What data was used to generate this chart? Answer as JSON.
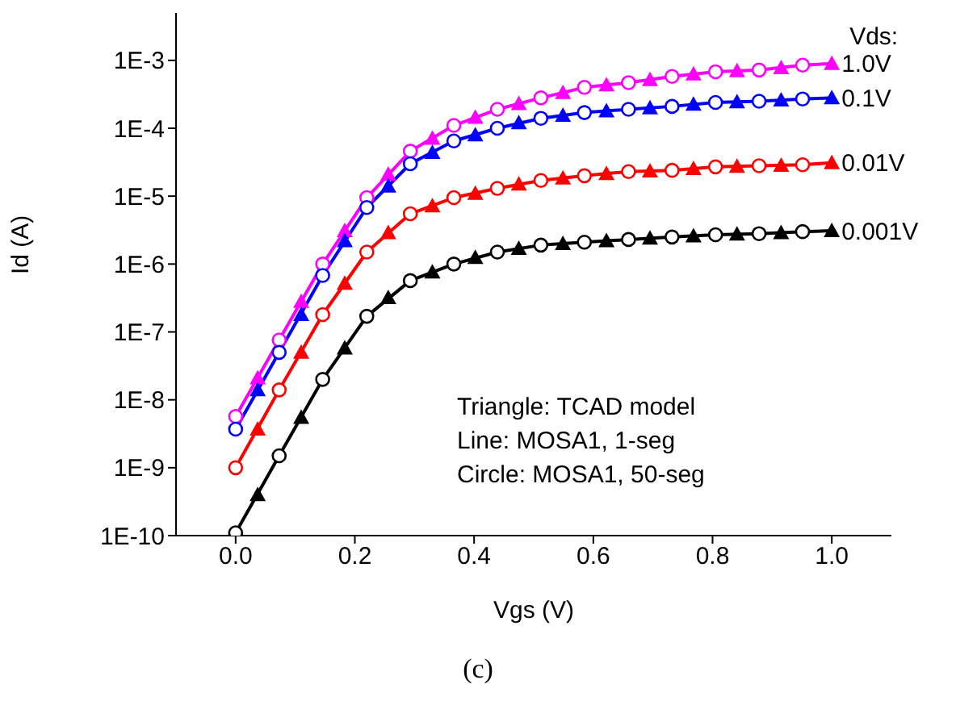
{
  "chart_data": {
    "type": "line",
    "xlabel": "Vgs (V)",
    "ylabel": "Id (A)",
    "legend_title": "Vds:",
    "xlim": [
      -0.1,
      1.1
    ],
    "xticks": [
      {
        "value": 0,
        "label": "0.0"
      },
      0.2,
      0.4,
      0.6,
      0.8,
      {
        "value": 1,
        "label": "1.0"
      }
    ],
    "ylim": [
      1e-10,
      0.005
    ],
    "yticks": [
      {
        "value": 1e-10,
        "label": "1E-10"
      },
      {
        "value": 1e-09,
        "label": "1E-9"
      },
      {
        "value": 1e-08,
        "label": "1E-8"
      },
      {
        "value": 1e-07,
        "label": "1E-7"
      },
      {
        "value": 1e-06,
        "label": "1E-6"
      },
      {
        "value": 1e-05,
        "label": "1E-5"
      },
      {
        "value": 0.0001,
        "label": "1E-4"
      },
      {
        "value": 0.001,
        "label": "1E-3"
      }
    ],
    "log": "y",
    "annotations": [
      "Triangle: TCAD model",
      "Line: MOSA1, 1-seg",
      "Circle: MOSA1, 50-seg",
      "(c)"
    ],
    "series": [
      {
        "type": "line",
        "marker": "none",
        "name": "1.0V",
        "color": "#ff00ff",
        "x": [
          0,
          0.073,
          0.146,
          0.22,
          0.293,
          0.366,
          0.439,
          0.512,
          0.585,
          0.659,
          0.732,
          0.805,
          0.878,
          0.951,
          1.0
        ],
        "values": [
          5.7e-09,
          7.6e-08,
          1e-06,
          9.5e-06,
          4.6e-05,
          0.00011,
          0.00019,
          0.00028,
          0.0004,
          0.00047,
          0.00058,
          0.00068,
          0.00072,
          0.00085,
          0.0009
        ]
      },
      {
        "type": "line",
        "marker": "none",
        "name": "0.1V",
        "color": "#0000ff",
        "x": [
          0,
          0.073,
          0.146,
          0.22,
          0.293,
          0.366,
          0.439,
          0.512,
          0.585,
          0.659,
          0.732,
          0.805,
          0.878,
          0.951,
          1.0
        ],
        "values": [
          3.7e-09,
          5e-08,
          6.8e-07,
          6.8e-06,
          3e-05,
          6.5e-05,
          0.0001,
          0.00014,
          0.00017,
          0.00019,
          0.00021,
          0.00024,
          0.00025,
          0.00027,
          0.00028
        ]
      },
      {
        "type": "line",
        "marker": "none",
        "name": "0.01V",
        "color": "#ff0000",
        "x": [
          0,
          0.073,
          0.146,
          0.22,
          0.293,
          0.366,
          0.439,
          0.512,
          0.585,
          0.659,
          0.732,
          0.805,
          0.878,
          0.951,
          1.0
        ],
        "values": [
          1e-09,
          1.4e-08,
          1.8e-07,
          1.5e-06,
          5.5e-06,
          9.5e-06,
          1.3e-05,
          1.7e-05,
          2e-05,
          2.3e-05,
          2.4e-05,
          2.7e-05,
          2.8e-05,
          2.9e-05,
          3.1e-05
        ]
      },
      {
        "type": "line",
        "marker": "none",
        "name": "0.001V",
        "color": "#000000",
        "x": [
          0,
          0.073,
          0.146,
          0.22,
          0.293,
          0.366,
          0.439,
          0.512,
          0.585,
          0.659,
          0.732,
          0.805,
          0.878,
          0.951,
          1.0
        ],
        "values": [
          1.1e-10,
          1.5e-09,
          2e-08,
          1.7e-07,
          5.7e-07,
          1e-06,
          1.5e-06,
          1.9e-06,
          2.1e-06,
          2.3e-06,
          2.5e-06,
          2.7e-06,
          2.8e-06,
          3e-06,
          3.1e-06
        ]
      },
      {
        "type": "scatter",
        "marker": "triangle",
        "color": "#ff00ff",
        "x": [
          0.037,
          0.11,
          0.183,
          0.256,
          0.33,
          0.402,
          0.475,
          0.549,
          0.622,
          0.695,
          0.768,
          0.841,
          0.915,
          1.0
        ],
        "values": [
          2.1e-08,
          2.8e-07,
          3.1e-06,
          2.1e-05,
          7.1e-05,
          0.000145,
          0.00023,
          0.000335,
          0.000435,
          0.00052,
          0.00063,
          0.0007,
          0.00078,
          0.0009
        ]
      },
      {
        "type": "scatter",
        "marker": "triangle",
        "color": "#0000ff",
        "x": [
          0.037,
          0.11,
          0.183,
          0.256,
          0.33,
          0.402,
          0.475,
          0.549,
          0.622,
          0.695,
          0.768,
          0.841,
          0.915,
          1.0
        ],
        "values": [
          1.4e-08,
          1.8e-07,
          2.2e-06,
          1.4e-05,
          4.4e-05,
          8e-05,
          0.00012,
          0.000155,
          0.00018,
          0.0002,
          0.000225,
          0.000245,
          0.00026,
          0.00028
        ]
      },
      {
        "type": "scatter",
        "marker": "triangle",
        "color": "#ff0000",
        "x": [
          0.037,
          0.11,
          0.183,
          0.256,
          0.33,
          0.402,
          0.475,
          0.549,
          0.622,
          0.695,
          0.768,
          0.841,
          0.915,
          1.0
        ],
        "values": [
          3.7e-09,
          5e-08,
          5.2e-07,
          2.9e-06,
          7.2e-06,
          1.1e-05,
          1.5e-05,
          1.85e-05,
          2.15e-05,
          2.35e-05,
          2.55e-05,
          2.75e-05,
          2.85e-05,
          3.1e-05
        ]
      },
      {
        "type": "scatter",
        "marker": "triangle",
        "color": "#000000",
        "x": [
          0.037,
          0.11,
          0.183,
          0.256,
          0.33,
          0.402,
          0.475,
          0.549,
          0.622,
          0.695,
          0.768,
          0.841,
          0.915,
          1.0
        ],
        "values": [
          4e-10,
          5.5e-09,
          5.8e-08,
          3.2e-07,
          7.6e-07,
          1.25e-06,
          1.7e-06,
          2e-06,
          2.2e-06,
          2.4e-06,
          2.6e-06,
          2.75e-06,
          2.9e-06,
          3.1e-06
        ]
      },
      {
        "type": "scatter",
        "marker": "circle",
        "color": "#ff00ff",
        "x": [
          0,
          0.073,
          0.146,
          0.22,
          0.293,
          0.366,
          0.439,
          0.512,
          0.585,
          0.659,
          0.732,
          0.805,
          0.878,
          0.951
        ],
        "values": [
          5.7e-09,
          7.6e-08,
          1e-06,
          9.5e-06,
          4.6e-05,
          0.00011,
          0.00019,
          0.00028,
          0.0004,
          0.00047,
          0.00058,
          0.00068,
          0.00072,
          0.00085
        ]
      },
      {
        "type": "scatter",
        "marker": "circle",
        "color": "#0000ff",
        "x": [
          0,
          0.073,
          0.146,
          0.22,
          0.293,
          0.366,
          0.439,
          0.512,
          0.585,
          0.659,
          0.732,
          0.805,
          0.878,
          0.951
        ],
        "values": [
          3.7e-09,
          5e-08,
          6.8e-07,
          6.8e-06,
          3e-05,
          6.5e-05,
          0.0001,
          0.00014,
          0.00017,
          0.00019,
          0.00021,
          0.00024,
          0.00025,
          0.00027
        ]
      },
      {
        "type": "scatter",
        "marker": "circle",
        "color": "#ff0000",
        "x": [
          0,
          0.073,
          0.146,
          0.22,
          0.293,
          0.366,
          0.439,
          0.512,
          0.585,
          0.659,
          0.732,
          0.805,
          0.878,
          0.951
        ],
        "values": [
          1e-09,
          1.4e-08,
          1.8e-07,
          1.5e-06,
          5.5e-06,
          9.5e-06,
          1.3e-05,
          1.7e-05,
          2e-05,
          2.3e-05,
          2.4e-05,
          2.7e-05,
          2.8e-05,
          2.9e-05
        ]
      },
      {
        "type": "scatter",
        "marker": "circle",
        "color": "#000000",
        "x": [
          0,
          0.073,
          0.146,
          0.22,
          0.293,
          0.366,
          0.439,
          0.512,
          0.585,
          0.659,
          0.732,
          0.805,
          0.878,
          0.951
        ],
        "values": [
          1.1e-10,
          1.5e-09,
          2e-08,
          1.7e-07,
          5.7e-07,
          1e-06,
          1.5e-06,
          1.9e-06,
          2.1e-06,
          2.3e-06,
          2.5e-06,
          2.7e-06,
          2.8e-06,
          3e-06
        ]
      }
    ]
  }
}
